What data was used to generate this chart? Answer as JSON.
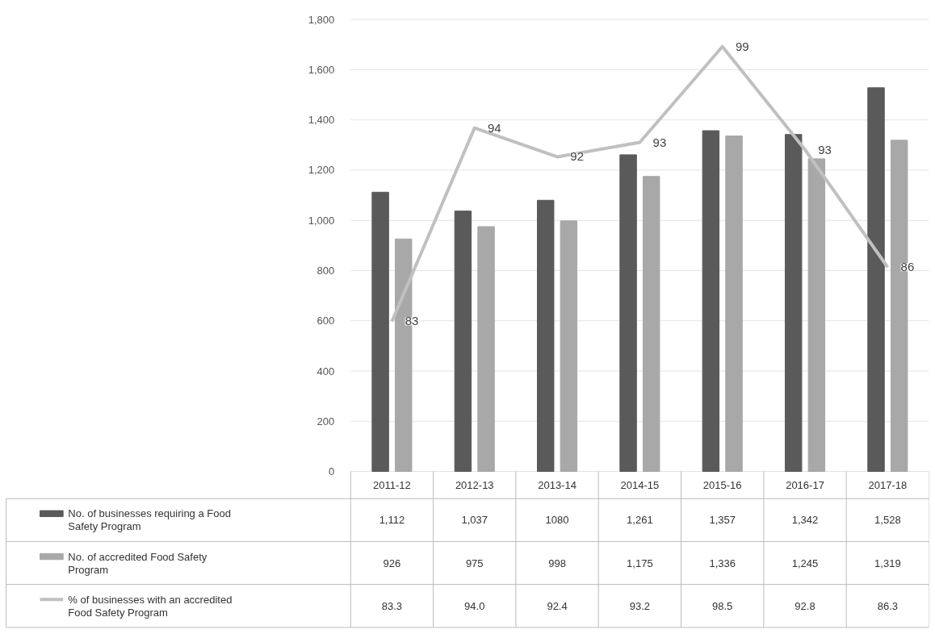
{
  "chart_data": {
    "type": "bar",
    "categories": [
      "2011-12",
      "2012-13",
      "2013-14",
      "2014-15",
      "2015-16",
      "2016-17",
      "2017-18"
    ],
    "series": [
      {
        "name": "No. of businesses requiring a Food Safety Program",
        "color": "#5a5a5a",
        "values": [
          1112,
          1037,
          1080,
          1261,
          1357,
          1342,
          1528
        ],
        "value_labels": [
          "1,112",
          "1,037",
          "1080",
          "1,261",
          "1,357",
          "1,342",
          "1,528"
        ]
      },
      {
        "name": "No. of accredited Food Safety Program",
        "color": "#a8a8a8",
        "values": [
          926,
          975,
          998,
          1175,
          1336,
          1245,
          1319
        ],
        "value_labels": [
          "926",
          "975",
          "998",
          "1,175",
          "1,336",
          "1,245",
          "1,319"
        ]
      },
      {
        "name": "% of businesses with an accredited Food Safety Program",
        "type": "line",
        "axis": "y2",
        "color": "#c0c0c0",
        "values": [
          83.3,
          94.0,
          92.4,
          93.2,
          98.5,
          92.8,
          86.3
        ],
        "value_labels": [
          "83.3",
          "94.0",
          "92.4",
          "93.2",
          "98.5",
          "92.8",
          "86.3"
        ]
      }
    ],
    "annotations": [
      "83",
      "94",
      "92",
      "93",
      "99",
      "93",
      "86"
    ],
    "ylim": [
      0,
      1800
    ],
    "yticks": [
      0,
      200,
      400,
      600,
      800,
      {
        "value": 1000,
        "label": "1,000"
      },
      {
        "value": 1200,
        "label": "1,200"
      },
      {
        "value": 1400,
        "label": "1,400"
      },
      {
        "value": 1600,
        "label": "1,600"
      },
      {
        "value": 1800,
        "label": "1,800"
      }
    ],
    "y2lim": [
      75,
      100
    ],
    "grid": "y",
    "legend": "bottom left"
  }
}
